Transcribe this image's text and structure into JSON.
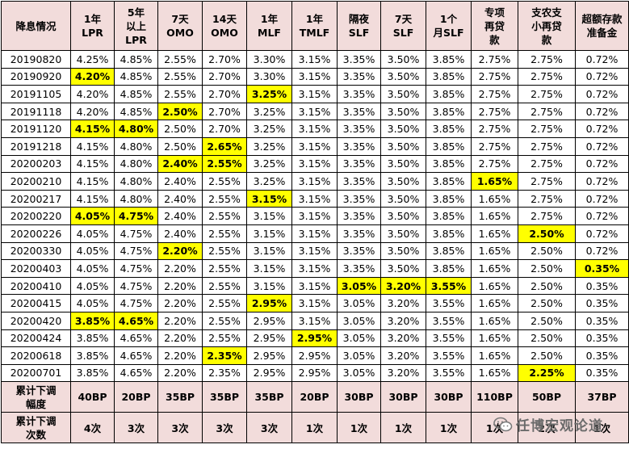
{
  "headers": [
    [
      "降息情况"
    ],
    [
      "1年",
      "LPR"
    ],
    [
      "5年",
      "以上",
      "LPR"
    ],
    [
      "7天",
      "OMO"
    ],
    [
      "14天",
      "OMO"
    ],
    [
      "1年",
      "MLF"
    ],
    [
      "1年",
      "TMLF"
    ],
    [
      "隔夜",
      "SLF"
    ],
    [
      "7天",
      "SLF"
    ],
    [
      "1个",
      "月SLF"
    ],
    [
      "专项",
      "再贷",
      "款"
    ],
    [
      "支农支",
      "小再贷",
      "款"
    ],
    [
      "超额存款",
      "准备金"
    ]
  ],
  "rows": [
    {
      "date": "20190820",
      "values": [
        "4.25%",
        "4.85%",
        "2.55%",
        "2.70%",
        "3.30%",
        "3.15%",
        "3.35%",
        "3.50%",
        "3.85%",
        "2.75%",
        "2.75%",
        "0.72%"
      ],
      "highlight": []
    },
    {
      "date": "20190920",
      "values": [
        "4.20%",
        "4.85%",
        "2.55%",
        "2.70%",
        "3.30%",
        "3.15%",
        "3.35%",
        "3.50%",
        "3.85%",
        "2.75%",
        "2.75%",
        "0.72%"
      ],
      "highlight": [
        0
      ]
    },
    {
      "date": "20191105",
      "values": [
        "4.20%",
        "4.85%",
        "2.55%",
        "2.70%",
        "3.25%",
        "3.15%",
        "3.35%",
        "3.50%",
        "3.85%",
        "2.75%",
        "2.75%",
        "0.72%"
      ],
      "highlight": [
        4
      ]
    },
    {
      "date": "20191118",
      "values": [
        "4.20%",
        "4.85%",
        "2.50%",
        "2.70%",
        "3.25%",
        "3.15%",
        "3.35%",
        "3.50%",
        "3.85%",
        "2.75%",
        "2.75%",
        "0.72%"
      ],
      "highlight": [
        2
      ]
    },
    {
      "date": "20191120",
      "values": [
        "4.15%",
        "4.80%",
        "2.50%",
        "2.70%",
        "3.25%",
        "3.15%",
        "3.35%",
        "3.50%",
        "3.85%",
        "2.75%",
        "2.75%",
        "0.72%"
      ],
      "highlight": [
        0,
        1
      ]
    },
    {
      "date": "20191218",
      "values": [
        "4.15%",
        "4.80%",
        "2.50%",
        "2.65%",
        "3.25%",
        "3.15%",
        "3.35%",
        "3.50%",
        "3.85%",
        "2.75%",
        "2.75%",
        "0.72%"
      ],
      "highlight": [
        3
      ]
    },
    {
      "date": "20200203",
      "values": [
        "4.15%",
        "4.80%",
        "2.40%",
        "2.55%",
        "3.25%",
        "3.15%",
        "3.35%",
        "3.50%",
        "3.85%",
        "2.75%",
        "2.75%",
        "0.72%"
      ],
      "highlight": [
        2,
        3
      ]
    },
    {
      "date": "20200210",
      "values": [
        "4.15%",
        "4.80%",
        "2.40%",
        "2.55%",
        "3.25%",
        "3.15%",
        "3.35%",
        "3.50%",
        "3.85%",
        "1.65%",
        "2.75%",
        "0.72%"
      ],
      "highlight": [
        9
      ]
    },
    {
      "date": "20200217",
      "values": [
        "4.15%",
        "4.80%",
        "2.40%",
        "2.55%",
        "3.15%",
        "3.15%",
        "3.35%",
        "3.50%",
        "3.85%",
        "1.65%",
        "2.75%",
        "0.72%"
      ],
      "highlight": [
        4
      ]
    },
    {
      "date": "20200220",
      "values": [
        "4.05%",
        "4.75%",
        "2.40%",
        "2.55%",
        "3.15%",
        "3.15%",
        "3.35%",
        "3.50%",
        "3.85%",
        "1.65%",
        "2.75%",
        "0.72%"
      ],
      "highlight": [
        0,
        1
      ]
    },
    {
      "date": "20200226",
      "values": [
        "4.05%",
        "4.75%",
        "2.40%",
        "2.55%",
        "3.15%",
        "3.15%",
        "3.35%",
        "3.50%",
        "3.85%",
        "1.65%",
        "2.50%",
        "0.72%"
      ],
      "highlight": [
        10
      ]
    },
    {
      "date": "20200330",
      "values": [
        "4.05%",
        "4.75%",
        "2.20%",
        "2.55%",
        "3.15%",
        "3.15%",
        "3.35%",
        "3.50%",
        "3.85%",
        "1.65%",
        "2.50%",
        "0.72%"
      ],
      "highlight": [
        2
      ]
    },
    {
      "date": "20200403",
      "values": [
        "4.05%",
        "4.75%",
        "2.20%",
        "2.55%",
        "3.15%",
        "3.15%",
        "3.35%",
        "3.50%",
        "3.85%",
        "1.65%",
        "2.50%",
        "0.35%"
      ],
      "highlight": [
        11
      ]
    },
    {
      "date": "20200410",
      "values": [
        "4.05%",
        "4.75%",
        "2.20%",
        "2.55%",
        "3.15%",
        "3.15%",
        "3.05%",
        "3.20%",
        "3.55%",
        "1.65%",
        "2.50%",
        "0.35%"
      ],
      "highlight": [
        6,
        7,
        8
      ]
    },
    {
      "date": "20200415",
      "values": [
        "4.05%",
        "4.75%",
        "2.20%",
        "2.55%",
        "2.95%",
        "3.15%",
        "3.05%",
        "3.20%",
        "3.55%",
        "1.65%",
        "2.50%",
        "0.35%"
      ],
      "highlight": [
        4
      ]
    },
    {
      "date": "20200420",
      "values": [
        "3.85%",
        "4.65%",
        "2.20%",
        "2.55%",
        "2.95%",
        "3.15%",
        "3.05%",
        "3.20%",
        "3.55%",
        "1.65%",
        "2.50%",
        "0.35%"
      ],
      "highlight": [
        0,
        1
      ]
    },
    {
      "date": "20200424",
      "values": [
        "3.85%",
        "4.65%",
        "2.20%",
        "2.55%",
        "2.95%",
        "2.95%",
        "3.05%",
        "3.20%",
        "3.55%",
        "1.65%",
        "2.50%",
        "0.35%"
      ],
      "highlight": [
        5
      ]
    },
    {
      "date": "20200618",
      "values": [
        "3.85%",
        "4.65%",
        "2.20%",
        "2.35%",
        "2.95%",
        "2.95%",
        "3.05%",
        "3.20%",
        "3.55%",
        "1.65%",
        "2.50%",
        "0.35%"
      ],
      "highlight": [
        3
      ]
    },
    {
      "date": "20200701",
      "values": [
        "3.85%",
        "4.65%",
        "2.20%",
        "2.35%",
        "2.95%",
        "2.95%",
        "3.05%",
        "3.20%",
        "3.55%",
        "1.65%",
        "2.25%",
        "0.35%"
      ],
      "highlight": [
        10
      ]
    }
  ],
  "footer": [
    {
      "label": "累计下调幅度",
      "label_lines": [
        "累计下调",
        "幅度"
      ],
      "values": [
        "40BP",
        "20BP",
        "35BP",
        "35BP",
        "35BP",
        "20BP",
        "30BP",
        "30BP",
        "30BP",
        "110BP",
        "50BP",
        "37BP"
      ]
    },
    {
      "label": "累计下调次数",
      "label_lines": [
        "累计下调",
        "次数"
      ],
      "values": [
        "4次",
        "3次",
        "3次",
        "3次",
        "3次",
        "1次",
        "1次",
        "1次",
        "1次",
        "1次",
        "2次",
        "1次"
      ]
    }
  ],
  "watermark": {
    "text": "任博宏观论道",
    "icon": "wechat-icon"
  },
  "colors": {
    "header_bg": "#f2dcdb",
    "highlight": "#ffff00",
    "border": "#000000"
  }
}
